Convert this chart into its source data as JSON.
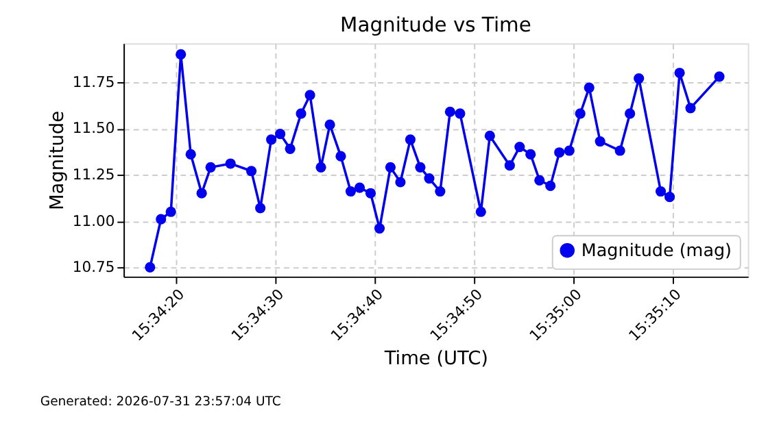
{
  "chart_data": {
    "type": "line",
    "title": "Magnitude vs Time",
    "xlabel": "Time (UTC)",
    "ylabel": "Magnitude",
    "annotations": [
      "Generated: 2026-07-31 23:57:04 UTC"
    ],
    "x": [
      15.5715,
      15.571806,
      15.572083,
      15.572361,
      15.572639,
      15.572944,
      15.573194,
      15.57375,
      15.574333,
      15.574583,
      15.574889,
      15.575139,
      15.575417,
      15.575722,
      15.575972,
      15.576278,
      15.576528,
      15.576833,
      15.577111,
      15.577361,
      15.577667,
      15.577917,
      15.578222,
      15.5785,
      15.578778,
      15.579056,
      15.579306,
      15.579611,
      15.579889,
      15.580167,
      15.58075,
      15.581,
      15.581556,
      15.581833,
      15.582139,
      15.582389,
      15.582694,
      15.582944,
      15.583222,
      15.583528,
      15.583778,
      15.584083,
      15.584639,
      15.584917,
      15.585167,
      15.585778,
      15.586028,
      15.586306,
      15.586611,
      15.587417
    ],
    "series": [
      {
        "name": "Magnitude (mag)",
        "color": "#0000ee",
        "values": [
          10.75,
          11.01,
          11.05,
          11.9,
          11.36,
          11.15,
          11.29,
          11.31,
          11.27,
          11.07,
          11.44,
          11.47,
          11.39,
          11.58,
          11.68,
          11.29,
          11.52,
          11.35,
          11.16,
          11.18,
          11.15,
          10.96,
          11.29,
          11.21,
          11.44,
          11.29,
          11.23,
          11.16,
          11.59,
          11.58,
          11.05,
          11.46,
          11.3,
          11.4,
          11.36,
          11.22,
          11.19,
          11.37,
          11.38,
          11.58,
          11.72,
          11.43,
          11.38,
          11.58,
          11.77,
          11.16,
          11.13,
          11.8,
          11.61,
          11.78
        ]
      }
    ],
    "xlim": [
      15.570759,
      15.588214
    ],
    "xticks": [
      {
        "value": 15.572222,
        "label": "15:34:20"
      },
      {
        "value": 15.575,
        "label": "15:34:30"
      },
      {
        "value": 15.577778,
        "label": "15:34:40"
      },
      {
        "value": 15.580556,
        "label": "15:34:50"
      },
      {
        "value": 15.583333,
        "label": "15:35:00"
      },
      {
        "value": 15.586111,
        "label": "15:35:10"
      }
    ],
    "ylim": [
      10.7,
      11.96
    ],
    "yticks": [
      10.75,
      {
        "value": 11.0,
        "label": "11.00"
      },
      11.25,
      {
        "value": 11.5,
        "label": "11.50"
      },
      11.75
    ],
    "grid": true,
    "legend": "bottom right",
    "marker": "circle",
    "line_style": "solid"
  }
}
